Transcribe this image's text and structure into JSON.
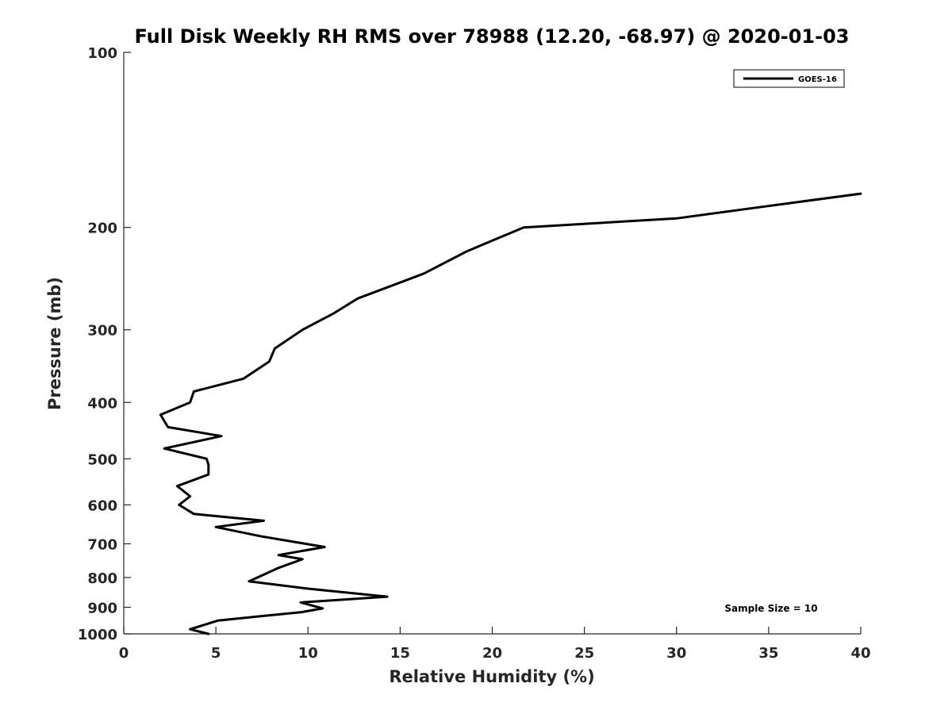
{
  "chart_data": {
    "type": "line",
    "title": "Full Disk Weekly RH RMS over 78988 (12.20, -68.97) @ 2020-01-03",
    "xlabel": "Relative Humidity (%)",
    "ylabel": "Pressure (mb)",
    "xlim": [
      0,
      40
    ],
    "ylim": [
      100,
      1000
    ],
    "y_scale": "log",
    "y_reversed": true,
    "x_ticks": [
      0,
      5,
      10,
      15,
      20,
      25,
      30,
      35,
      40
    ],
    "y_ticks": [
      100,
      200,
      300,
      400,
      500,
      600,
      700,
      800,
      900,
      1000
    ],
    "grid": false,
    "legend_position": "top-right",
    "series": [
      {
        "name": "GOES-16",
        "color": "#000000",
        "points": [
          [
            40.0,
            175
          ],
          [
            34.3,
            185
          ],
          [
            30.0,
            193
          ],
          [
            21.7,
            200
          ],
          [
            18.6,
            220
          ],
          [
            16.3,
            240
          ],
          [
            12.7,
            265
          ],
          [
            11.4,
            281
          ],
          [
            9.7,
            300
          ],
          [
            8.2,
            323
          ],
          [
            7.9,
            340
          ],
          [
            6.5,
            364
          ],
          [
            3.8,
            383
          ],
          [
            3.6,
            400
          ],
          [
            2.0,
            420
          ],
          [
            2.4,
            441
          ],
          [
            5.3,
            457
          ],
          [
            2.2,
            480
          ],
          [
            4.5,
            500
          ],
          [
            4.6,
            512
          ],
          [
            4.6,
            532
          ],
          [
            2.9,
            557
          ],
          [
            3.6,
            580
          ],
          [
            3.0,
            600
          ],
          [
            3.8,
            622
          ],
          [
            7.6,
            639
          ],
          [
            5.0,
            655
          ],
          [
            7.4,
            679
          ],
          [
            10.9,
            709
          ],
          [
            8.4,
            732
          ],
          [
            9.7,
            744
          ],
          [
            8.4,
            770
          ],
          [
            7.7,
            788
          ],
          [
            6.8,
            812
          ],
          [
            10.0,
            836
          ],
          [
            14.3,
            863
          ],
          [
            9.6,
            883
          ],
          [
            10.8,
            904
          ],
          [
            9.6,
            918
          ],
          [
            7.9,
            929
          ],
          [
            5.1,
            949
          ],
          [
            3.6,
            982
          ],
          [
            4.6,
            1000
          ]
        ]
      }
    ],
    "annotations": [
      {
        "text": "Sample Size = 10"
      }
    ]
  }
}
